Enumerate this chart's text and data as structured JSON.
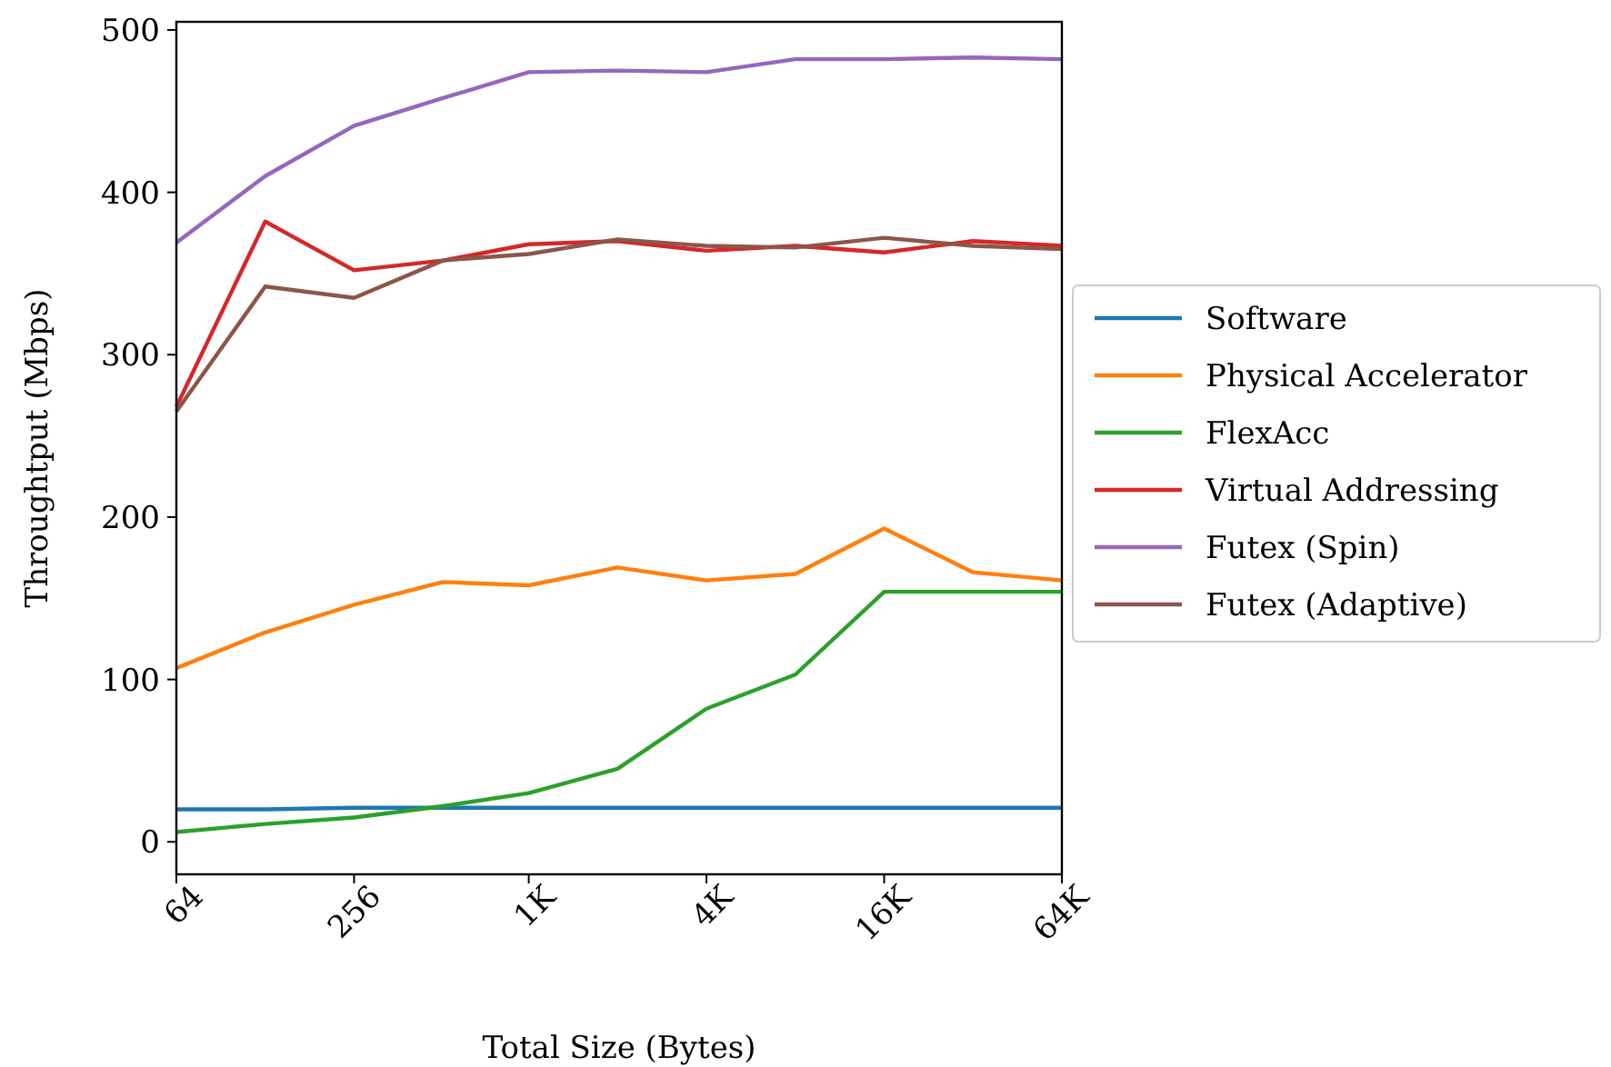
{
  "chart_data": {
    "type": "line",
    "xlabel": "Total Size (Bytes)",
    "ylabel": "Throughtput (Mbps)",
    "x": [
      64,
      128,
      256,
      512,
      1000,
      2000,
      4000,
      8000,
      16000,
      32000,
      64000
    ],
    "log": "x",
    "xlim": [
      64,
      64000
    ],
    "xticks": [
      64,
      256,
      {
        "value": 1000,
        "label": "1K"
      },
      {
        "value": 4000,
        "label": "4K"
      },
      {
        "value": 16000,
        "label": "16K"
      },
      {
        "value": 64000,
        "label": "64K"
      }
    ],
    "ylim": [
      -20,
      505
    ],
    "yticks": [
      0,
      100,
      200,
      300,
      400,
      500
    ],
    "grid": false,
    "legend": "right",
    "line_style": "solid",
    "marker": "none",
    "series": [
      {
        "name": "Software",
        "color": "#1f77b4",
        "values": [
          20,
          20,
          21,
          21,
          21,
          21,
          21,
          21,
          21,
          21,
          21
        ]
      },
      {
        "name": "Physical Accelerator",
        "color": "#ff7f0e",
        "values": [
          107,
          129,
          146,
          160,
          158,
          169,
          161,
          165,
          193,
          166,
          161
        ]
      },
      {
        "name": "FlexAcc",
        "color": "#2ca02c",
        "values": [
          6,
          11,
          15,
          22,
          30,
          45,
          82,
          103,
          154,
          154,
          154
        ]
      },
      {
        "name": "Virtual Addressing",
        "color": "#d62728",
        "values": [
          268,
          382,
          352,
          358,
          368,
          370,
          364,
          367,
          363,
          370,
          367
        ]
      },
      {
        "name": "Futex (Spin)",
        "color": "#9467bd",
        "values": [
          369,
          410,
          441,
          458,
          474,
          475,
          474,
          482,
          482,
          483,
          482
        ]
      },
      {
        "name": "Futex (Adaptive)",
        "color": "#8c564b",
        "values": [
          265,
          342,
          335,
          358,
          362,
          371,
          367,
          366,
          372,
          367,
          365
        ]
      }
    ]
  }
}
